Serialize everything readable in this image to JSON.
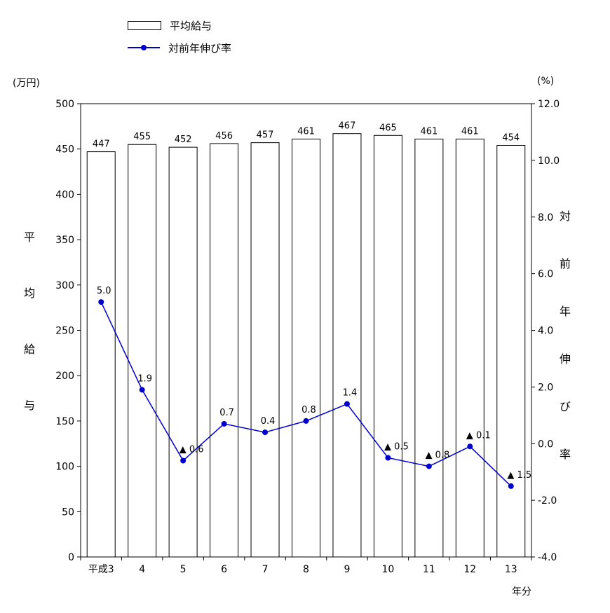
{
  "chart_data": {
    "type": "bar+line",
    "categories": [
      "平成3",
      "4",
      "5",
      "6",
      "7",
      "8",
      "9",
      "10",
      "11",
      "12",
      "13"
    ],
    "xlabel": "年分",
    "series": [
      {
        "name": "平均給与",
        "type": "bar",
        "axis": "left",
        "values": [
          447,
          455,
          452,
          456,
          457,
          461,
          467,
          465,
          461,
          461,
          454
        ],
        "labels": [
          "447",
          "455",
          "452",
          "456",
          "457",
          "461",
          "467",
          "465",
          "461",
          "461",
          "454"
        ]
      },
      {
        "name": "対前年伸び率",
        "type": "line",
        "axis": "right",
        "values": [
          5.0,
          1.9,
          -0.6,
          0.7,
          0.4,
          0.8,
          1.4,
          -0.5,
          -0.8,
          -0.1,
          -1.5
        ],
        "labels": [
          "5.0",
          "1.9",
          "▲ 0.6",
          "0.7",
          "0.4",
          "0.8",
          "1.4",
          "▲ 0.5",
          "▲ 0.8",
          "▲ 0.1",
          "▲ 1.5"
        ]
      }
    ],
    "left_axis": {
      "unit": "(万円)",
      "title": "平均給与",
      "min": 0,
      "max": 500,
      "tick_values": [
        0,
        50,
        100,
        150,
        200,
        250,
        300,
        350,
        400,
        450,
        500
      ],
      "tick_labels": [
        "0",
        "50",
        "100",
        "150",
        "200",
        "250",
        "300",
        "350",
        "400",
        "450",
        "500"
      ]
    },
    "right_axis": {
      "unit": "(%)",
      "title": "対前年伸び率",
      "min": -4,
      "max": 12,
      "tick_values": [
        -4,
        -2,
        0,
        2,
        4,
        6,
        8,
        10,
        12
      ],
      "tick_labels": [
        "-4.0",
        "-2.0",
        "0.0",
        "2.0",
        "4.0",
        "6.0",
        "8.0",
        "10.0",
        "12.0"
      ]
    },
    "colors": {
      "line": "#0000cc",
      "bar_fill": "#ffffff",
      "bar_stroke": "#000000",
      "text": "#000000"
    },
    "grid": false,
    "legend_position": "top-left"
  }
}
